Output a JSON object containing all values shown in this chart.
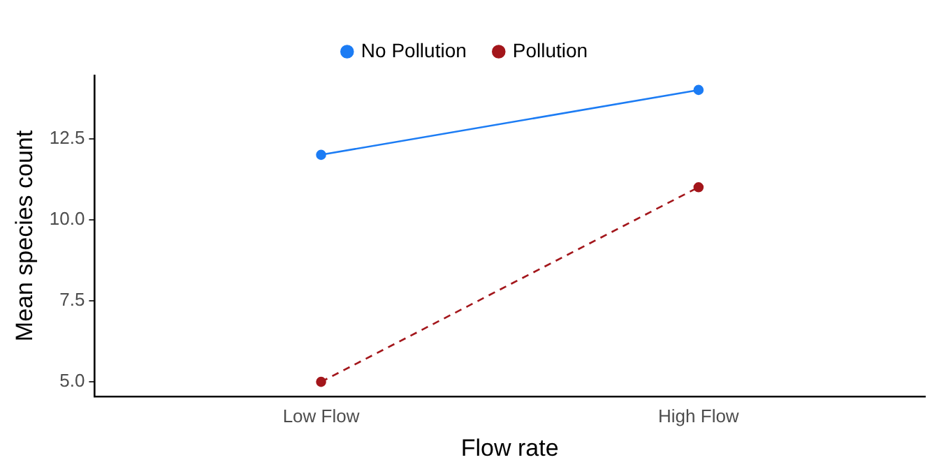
{
  "chart_data": {
    "type": "line",
    "xlabel": "Flow rate",
    "ylabel": "Mean species count",
    "categories": [
      "Low Flow",
      "High Flow"
    ],
    "series": [
      {
        "name": "No Pollution",
        "color": "#1c7cf4",
        "values": [
          12,
          14
        ],
        "line_style": "solid"
      },
      {
        "name": "Pollution",
        "color": "#a3161b",
        "values": [
          5,
          11
        ],
        "line_style": "dashed"
      }
    ],
    "ylim": [
      4.55,
      14.45
    ],
    "yticks": [
      {
        "value": 5,
        "label": "5.0"
      },
      {
        "value": 7.5,
        "label": "7.5"
      },
      {
        "value": 10,
        "label": "10.0"
      },
      {
        "value": 12.5,
        "label": "12.5"
      }
    ],
    "grid": false,
    "legend": "top",
    "marker": "circle"
  }
}
